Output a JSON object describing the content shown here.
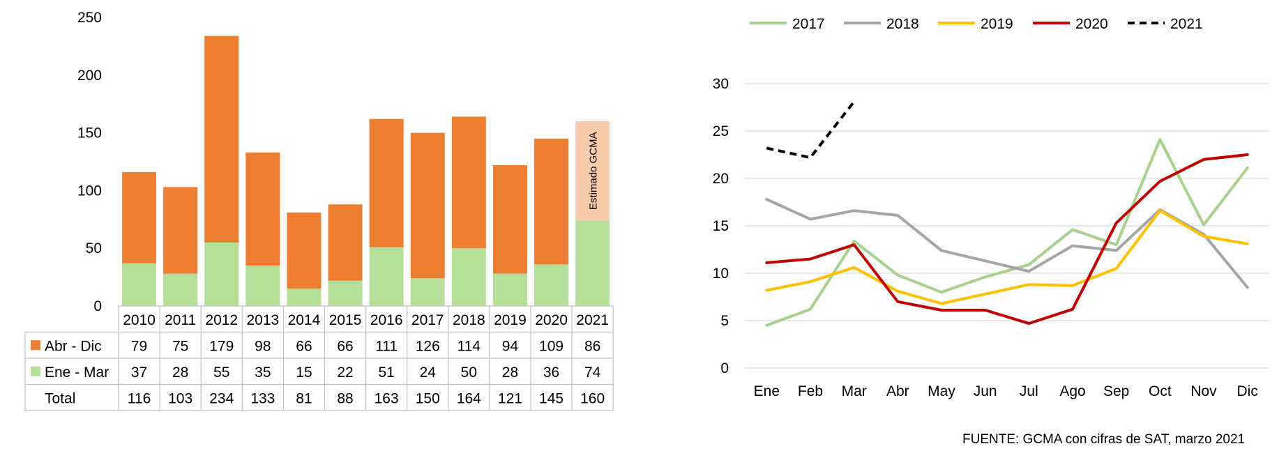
{
  "chart_data": [
    {
      "type": "bar",
      "stacked": true,
      "categories": [
        "2010",
        "2011",
        "2012",
        "2013",
        "2014",
        "2015",
        "2016",
        "2017",
        "2018",
        "2019",
        "2020",
        "2021"
      ],
      "series": [
        {
          "name": "Abr - Dic",
          "values": [
            79,
            75,
            179,
            98,
            66,
            66,
            111,
            126,
            114,
            94,
            109,
            86
          ],
          "color": "#ED7D31"
        },
        {
          "name": "Ene - Mar",
          "values": [
            37,
            28,
            55,
            35,
            15,
            22,
            51,
            24,
            50,
            28,
            36,
            74
          ],
          "color": "#B6DF9A"
        }
      ],
      "estimate_color": "#F8CBAD",
      "estimate_label": "Estimado GCMA",
      "totals_label": "Total",
      "totals": [
        116,
        103,
        234,
        133,
        81,
        88,
        163,
        150,
        164,
        121,
        145,
        160
      ],
      "ylim": [
        0,
        250
      ],
      "yticks": [
        0,
        50,
        100,
        150,
        200,
        250
      ],
      "grid": false,
      "legend": "data-table"
    },
    {
      "type": "line",
      "x": [
        "Ene",
        "Feb",
        "Mar",
        "Abr",
        "May",
        "Jun",
        "Jul",
        "Ago",
        "Sep",
        "Oct",
        "Nov",
        "Dic"
      ],
      "series": [
        {
          "name": "2017",
          "color": "#A9D18E",
          "dash": false,
          "values": [
            4.5,
            6.2,
            13.4,
            9.8,
            8.0,
            9.6,
            10.9,
            14.6,
            13.0,
            24.1,
            15.1,
            21.1
          ]
        },
        {
          "name": "2018",
          "color": "#A5A5A5",
          "dash": false,
          "values": [
            17.8,
            15.7,
            16.6,
            16.1,
            12.4,
            11.3,
            10.2,
            12.9,
            12.4,
            16.7,
            14.1,
            8.5
          ]
        },
        {
          "name": "2019",
          "color": "#FFC000",
          "dash": false,
          "values": [
            8.2,
            9.1,
            10.6,
            8.1,
            6.8,
            7.8,
            8.8,
            8.7,
            10.5,
            16.6,
            13.9,
            13.1
          ]
        },
        {
          "name": "2020",
          "color": "#C00000",
          "dash": false,
          "values": [
            11.1,
            11.5,
            13.0,
            7.0,
            6.1,
            6.1,
            4.7,
            6.2,
            15.3,
            19.7,
            22.0,
            22.5
          ]
        },
        {
          "name": "2021",
          "color": "#000000",
          "dash": true,
          "values": [
            23.2,
            22.2,
            28.1,
            null,
            null,
            null,
            null,
            null,
            null,
            null,
            null,
            null
          ]
        }
      ],
      "ylim": [
        0,
        30
      ],
      "yticks": [
        0,
        5,
        10,
        15,
        20,
        25,
        30
      ],
      "grid": true,
      "legend": "top"
    }
  ],
  "source_text": "FUENTE: GCMA con cifras de SAT, marzo 2021"
}
